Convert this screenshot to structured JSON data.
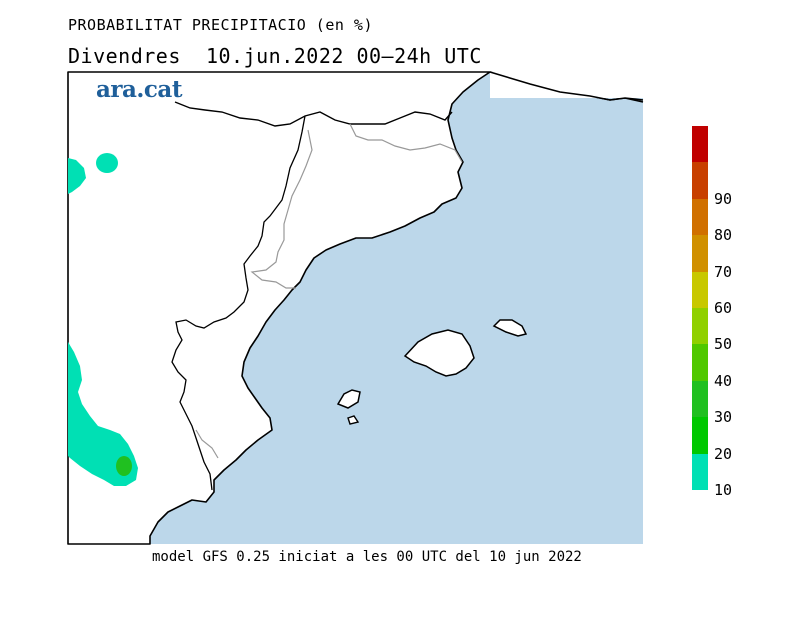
{
  "header": {
    "title": "PROBABILITAT PRECIPITACIO (en %)",
    "subtitle": "Divendres  10.jun.2022 00—24h UTC"
  },
  "logo": {
    "text": "ara.cat"
  },
  "footer": {
    "text": "model GFS 0.25 iniciat a les 00 UTC del 10 jun 2022"
  },
  "colors": {
    "sea": "#bcd7ea",
    "land": "#ffffff",
    "coast": "#000000",
    "border": "#999999",
    "precip_light": "#00e0b4",
    "precip_medium": "#00c800"
  },
  "legend": {
    "colors": [
      "#00e0b4",
      "#00c800",
      "#20c020",
      "#50c800",
      "#90d000",
      "#c8c800",
      "#d09000",
      "#d07000",
      "#c84000",
      "#c00000"
    ],
    "labels": [
      "10",
      "20",
      "30",
      "40",
      "50",
      "60",
      "70",
      "80",
      "90"
    ]
  }
}
